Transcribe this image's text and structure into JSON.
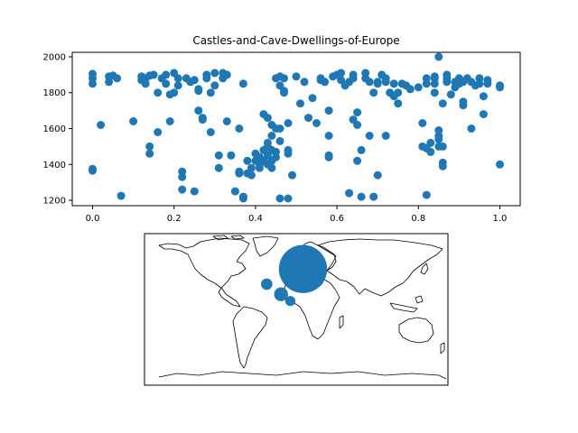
{
  "chart_data": [
    {
      "type": "scatter",
      "title": "Castles-and-Cave-Dwellings-of-Europe",
      "xlabel": "",
      "ylabel": "",
      "xlim": [
        -0.05,
        1.05
      ],
      "ylim": [
        1170,
        2025
      ],
      "xticks": [
        0.0,
        0.2,
        0.4,
        0.6,
        0.8,
        1.0
      ],
      "xtick_labels": [
        "0.0",
        "0.2",
        "0.4",
        "0.6",
        "0.8",
        "1.0"
      ],
      "yticks": [
        1200,
        1400,
        1600,
        1800,
        2000
      ],
      "ytick_labels": [
        "1200",
        "1400",
        "1600",
        "1800",
        "2000"
      ],
      "grid": false,
      "color": "#1f77b4",
      "points": [
        [
          0.0,
          1905
        ],
        [
          0.0,
          1880
        ],
        [
          0.0,
          1850
        ],
        [
          0.0,
          1375
        ],
        [
          0.0,
          1365
        ],
        [
          0.02,
          1620
        ],
        [
          0.04,
          1890
        ],
        [
          0.04,
          1860
        ],
        [
          0.05,
          1895
        ],
        [
          0.06,
          1880
        ],
        [
          0.07,
          1225
        ],
        [
          0.1,
          1640
        ],
        [
          0.12,
          1890
        ],
        [
          0.12,
          1870
        ],
        [
          0.13,
          1850
        ],
        [
          0.13,
          1880
        ],
        [
          0.14,
          1460
        ],
        [
          0.14,
          1500
        ],
        [
          0.14,
          1895
        ],
        [
          0.15,
          1900
        ],
        [
          0.16,
          1800
        ],
        [
          0.16,
          1580
        ],
        [
          0.17,
          1880
        ],
        [
          0.18,
          1850
        ],
        [
          0.18,
          1900
        ],
        [
          0.19,
          1640
        ],
        [
          0.19,
          1790
        ],
        [
          0.2,
          1910
        ],
        [
          0.2,
          1800
        ],
        [
          0.21,
          1880
        ],
        [
          0.21,
          1840
        ],
        [
          0.22,
          1360
        ],
        [
          0.22,
          1330
        ],
        [
          0.22,
          1260
        ],
        [
          0.23,
          1880
        ],
        [
          0.24,
          1860
        ],
        [
          0.25,
          1870
        ],
        [
          0.25,
          1250
        ],
        [
          0.26,
          1820
        ],
        [
          0.26,
          1810
        ],
        [
          0.26,
          1700
        ],
        [
          0.27,
          1650
        ],
        [
          0.27,
          1660
        ],
        [
          0.28,
          1900
        ],
        [
          0.28,
          1880
        ],
        [
          0.29,
          1800
        ],
        [
          0.29,
          1580
        ],
        [
          0.3,
          1910
        ],
        [
          0.3,
          1840
        ],
        [
          0.31,
          1450
        ],
        [
          0.31,
          1380
        ],
        [
          0.32,
          1880
        ],
        [
          0.32,
          1910
        ],
        [
          0.33,
          1900
        ],
        [
          0.33,
          1640
        ],
        [
          0.34,
          1450
        ],
        [
          0.35,
          1250
        ],
        [
          0.36,
          1600
        ],
        [
          0.36,
          1350
        ],
        [
          0.36,
          1360
        ],
        [
          0.37,
          1850
        ],
        [
          0.37,
          1220
        ],
        [
          0.37,
          1210
        ],
        [
          0.38,
          1350
        ],
        [
          0.38,
          1420
        ],
        [
          0.39,
          1380
        ],
        [
          0.39,
          1340
        ],
        [
          0.4,
          1420
        ],
        [
          0.4,
          1460
        ],
        [
          0.41,
          1400
        ],
        [
          0.41,
          1380
        ],
        [
          0.41,
          1440
        ],
        [
          0.42,
          1680
        ],
        [
          0.42,
          1480
        ],
        [
          0.42,
          1420
        ],
        [
          0.43,
          1660
        ],
        [
          0.43,
          1520
        ],
        [
          0.43,
          1500
        ],
        [
          0.43,
          1450
        ],
        [
          0.43,
          1400
        ],
        [
          0.44,
          1620
        ],
        [
          0.44,
          1560
        ],
        [
          0.44,
          1480
        ],
        [
          0.44,
          1420
        ],
        [
          0.44,
          1380
        ],
        [
          0.45,
          1880
        ],
        [
          0.45,
          1600
        ],
        [
          0.45,
          1470
        ],
        [
          0.45,
          1440
        ],
        [
          0.46,
          1890
        ],
        [
          0.46,
          1840
        ],
        [
          0.46,
          1600
        ],
        [
          0.46,
          1530
        ],
        [
          0.46,
          1210
        ],
        [
          0.47,
          1880
        ],
        [
          0.47,
          1810
        ],
        [
          0.47,
          1800
        ],
        [
          0.48,
          1630
        ],
        [
          0.48,
          1480
        ],
        [
          0.48,
          1460
        ],
        [
          0.48,
          1210
        ],
        [
          0.49,
          1340
        ],
        [
          0.5,
          1890
        ],
        [
          0.51,
          1740
        ],
        [
          0.52,
          1860
        ],
        [
          0.53,
          1660
        ],
        [
          0.54,
          1770
        ],
        [
          0.55,
          1630
        ],
        [
          0.56,
          1880
        ],
        [
          0.56,
          1870
        ],
        [
          0.57,
          1860
        ],
        [
          0.58,
          1700
        ],
        [
          0.58,
          1560
        ],
        [
          0.58,
          1440
        ],
        [
          0.58,
          1450
        ],
        [
          0.59,
          1890
        ],
        [
          0.6,
          1900
        ],
        [
          0.61,
          1910
        ],
        [
          0.61,
          1870
        ],
        [
          0.62,
          1840
        ],
        [
          0.63,
          1860
        ],
        [
          0.63,
          1240
        ],
        [
          0.64,
          1650
        ],
        [
          0.64,
          1900
        ],
        [
          0.64,
          1880
        ],
        [
          0.65,
          1690
        ],
        [
          0.65,
          1620
        ],
        [
          0.65,
          1420
        ],
        [
          0.66,
          1480
        ],
        [
          0.66,
          1220
        ],
        [
          0.67,
          1910
        ],
        [
          0.67,
          1880
        ],
        [
          0.68,
          1860
        ],
        [
          0.68,
          1560
        ],
        [
          0.69,
          1800
        ],
        [
          0.69,
          1220
        ],
        [
          0.7,
          1860
        ],
        [
          0.7,
          1850
        ],
        [
          0.7,
          1340
        ],
        [
          0.71,
          1900
        ],
        [
          0.72,
          1880
        ],
        [
          0.72,
          1860
        ],
        [
          0.72,
          1560
        ],
        [
          0.73,
          1800
        ],
        [
          0.74,
          1780
        ],
        [
          0.74,
          1850
        ],
        [
          0.75,
          1800
        ],
        [
          0.75,
          1740
        ],
        [
          0.76,
          1850
        ],
        [
          0.77,
          1840
        ],
        [
          0.78,
          1820
        ],
        [
          0.8,
          1830
        ],
        [
          0.81,
          1630
        ],
        [
          0.81,
          1500
        ],
        [
          0.82,
          1490
        ],
        [
          0.82,
          1850
        ],
        [
          0.82,
          1880
        ],
        [
          0.83,
          1470
        ],
        [
          0.83,
          1520
        ],
        [
          0.84,
          1800
        ],
        [
          0.84,
          1850
        ],
        [
          0.84,
          1880
        ],
        [
          0.84,
          1890
        ],
        [
          0.85,
          2000
        ],
        [
          0.85,
          1590
        ],
        [
          0.85,
          1560
        ],
        [
          0.85,
          1540
        ],
        [
          0.85,
          1500
        ],
        [
          0.86,
          1410
        ],
        [
          0.86,
          1390
        ],
        [
          0.86,
          1500
        ],
        [
          0.86,
          1740
        ],
        [
          0.87,
          1880
        ],
        [
          0.87,
          1900
        ],
        [
          0.87,
          1860
        ],
        [
          0.88,
          1790
        ],
        [
          0.89,
          1830
        ],
        [
          0.89,
          1860
        ],
        [
          0.9,
          1880
        ],
        [
          0.9,
          1850
        ],
        [
          0.91,
          1860
        ],
        [
          0.91,
          1750
        ],
        [
          0.91,
          1730
        ],
        [
          0.92,
          1880
        ],
        [
          0.93,
          1860
        ],
        [
          0.93,
          1600
        ],
        [
          0.94,
          1840
        ],
        [
          0.95,
          1880
        ],
        [
          0.95,
          1850
        ],
        [
          0.96,
          1780
        ],
        [
          0.96,
          1680
        ],
        [
          0.97,
          1870
        ],
        [
          0.97,
          1850
        ],
        [
          1.0,
          1840
        ],
        [
          1.0,
          1830
        ],
        [
          1.0,
          1400
        ],
        [
          0.82,
          1230
        ]
      ]
    },
    {
      "type": "map",
      "projection": "equirectangular",
      "title": "",
      "color": "#1f77b4",
      "outline_color": "#000000",
      "bubbles": [
        {
          "lon": 8,
          "lat": 48,
          "size": 18
        },
        {
          "lon": 15,
          "lat": 42,
          "size": 5
        },
        {
          "lon": 20,
          "lat": 38,
          "size": 4
        },
        {
          "lon": -35,
          "lat": 30,
          "size": 1
        },
        {
          "lon": -18,
          "lat": 18,
          "size": 1.5
        },
        {
          "lon": -7,
          "lat": 10,
          "size": 0.8
        },
        {
          "lon": 8,
          "lat": 62,
          "size": 1
        }
      ]
    }
  ]
}
